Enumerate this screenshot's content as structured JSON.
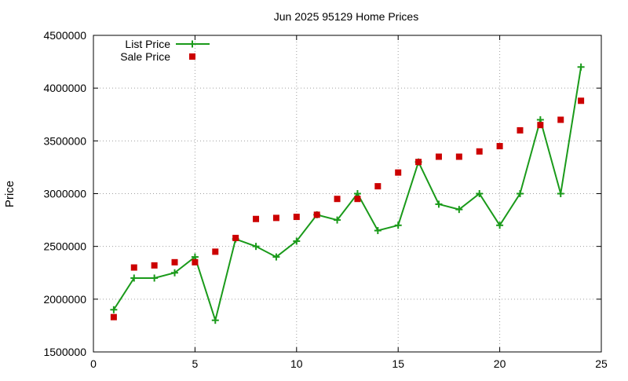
{
  "chart_data": {
    "type": "line",
    "title": "Jun 2025 95129 Home Prices",
    "xlabel": "",
    "ylabel": "Price",
    "xlim": [
      0,
      25
    ],
    "ylim": [
      1500000,
      4500000
    ],
    "xticks": [
      0,
      5,
      10,
      15,
      20,
      25
    ],
    "xtick_labels": [
      "0",
      "5",
      "10",
      "15",
      "20",
      "25"
    ],
    "yticks": [
      1500000,
      2000000,
      2500000,
      3000000,
      3500000,
      4000000,
      4500000
    ],
    "ytick_labels": [
      "1500000",
      "2000000",
      "2500000",
      "3000000",
      "3500000",
      "4000000",
      "4500000"
    ],
    "grid": true,
    "legend_position": "top-left",
    "series": [
      {
        "name": "List Price",
        "style": "line+plus",
        "color": "#1a9a1a",
        "x": [
          1,
          2,
          3,
          4,
          5,
          6,
          7,
          8,
          9,
          10,
          11,
          12,
          13,
          14,
          15,
          16,
          17,
          18,
          19,
          20,
          21,
          22,
          23,
          24
        ],
        "values": [
          1900000,
          2200000,
          2200000,
          2250000,
          2400000,
          1800000,
          2570000,
          2500000,
          2400000,
          2550000,
          2800000,
          2750000,
          3000000,
          2650000,
          2700000,
          3300000,
          2900000,
          2850000,
          3000000,
          2700000,
          3000000,
          3700000,
          3000000,
          4200000
        ]
      },
      {
        "name": "Sale Price",
        "style": "square",
        "color": "#cc0000",
        "x": [
          1,
          2,
          3,
          4,
          5,
          6,
          7,
          8,
          9,
          10,
          11,
          12,
          13,
          14,
          15,
          16,
          17,
          18,
          19,
          20,
          21,
          22,
          23,
          24
        ],
        "values": [
          1830000,
          2300000,
          2320000,
          2350000,
          2350000,
          2450000,
          2580000,
          2760000,
          2770000,
          2780000,
          2800000,
          2950000,
          2950000,
          3070000,
          3200000,
          3300000,
          3350000,
          3350000,
          3400000,
          3450000,
          3600000,
          3650000,
          3700000,
          3880000
        ]
      }
    ]
  }
}
